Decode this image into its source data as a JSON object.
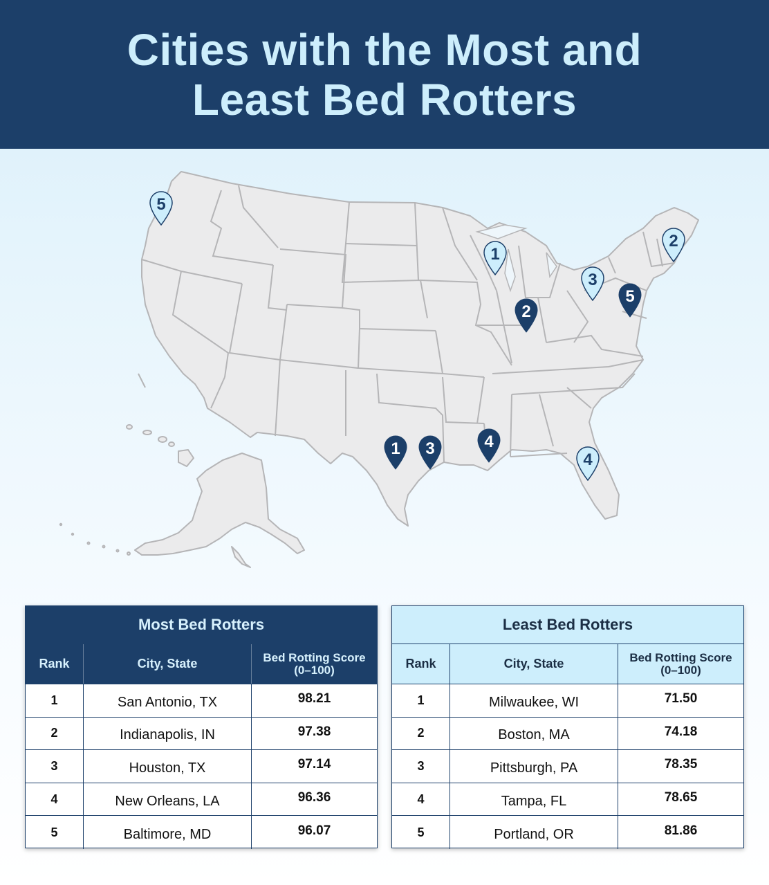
{
  "title_line1": "Cities with the Most and",
  "title_line2": "Least Bed Rotters",
  "colors": {
    "navy": "#1c3f69",
    "light_blue": "#cdeefc",
    "map_fill": "#ebebec",
    "map_stroke": "#b5b5b7"
  },
  "map_pins": [
    {
      "id": "most-1",
      "list": "most",
      "label": "1",
      "city": "San Antonio, TX"
    },
    {
      "id": "most-2",
      "list": "most",
      "label": "2",
      "city": "Indianapolis, IN"
    },
    {
      "id": "most-3",
      "list": "most",
      "label": "3",
      "city": "Houston, TX"
    },
    {
      "id": "most-4",
      "list": "most",
      "label": "4",
      "city": "New Orleans, LA"
    },
    {
      "id": "most-5",
      "list": "most",
      "label": "5",
      "city": "Baltimore, MD"
    },
    {
      "id": "least-1",
      "list": "least",
      "label": "1",
      "city": "Milwaukee, WI"
    },
    {
      "id": "least-2",
      "list": "least",
      "label": "2",
      "city": "Boston, MA"
    },
    {
      "id": "least-3",
      "list": "least",
      "label": "3",
      "city": "Pittsburgh, PA"
    },
    {
      "id": "least-4",
      "list": "least",
      "label": "4",
      "city": "Tampa, FL"
    },
    {
      "id": "least-5",
      "list": "least",
      "label": "5",
      "city": "Portland, OR"
    }
  ],
  "most": {
    "caption": "Most Bed Rotters",
    "headers": {
      "rank": "Rank",
      "city": "City, State",
      "score_line1": "Bed Rotting Score",
      "score_line2": "(0–100)"
    },
    "rows": [
      {
        "rank": "1",
        "city": "San Antonio, TX",
        "score": "98.21"
      },
      {
        "rank": "2",
        "city": "Indianapolis, IN",
        "score": "97.38"
      },
      {
        "rank": "3",
        "city": "Houston, TX",
        "score": "97.14"
      },
      {
        "rank": "4",
        "city": "New Orleans, LA",
        "score": "96.36"
      },
      {
        "rank": "5",
        "city": "Baltimore, MD",
        "score": "96.07"
      }
    ]
  },
  "least": {
    "caption": "Least Bed Rotters",
    "headers": {
      "rank": "Rank",
      "city": "City, State",
      "score_line1": "Bed Rotting Score",
      "score_line2": "(0–100)"
    },
    "rows": [
      {
        "rank": "1",
        "city": "Milwaukee, WI",
        "score": "71.50"
      },
      {
        "rank": "2",
        "city": "Boston, MA",
        "score": "74.18"
      },
      {
        "rank": "3",
        "city": "Pittsburgh, PA",
        "score": "78.35"
      },
      {
        "rank": "4",
        "city": "Tampa, FL",
        "score": "78.65"
      },
      {
        "rank": "5",
        "city": "Portland, OR",
        "score": "81.86"
      }
    ]
  }
}
